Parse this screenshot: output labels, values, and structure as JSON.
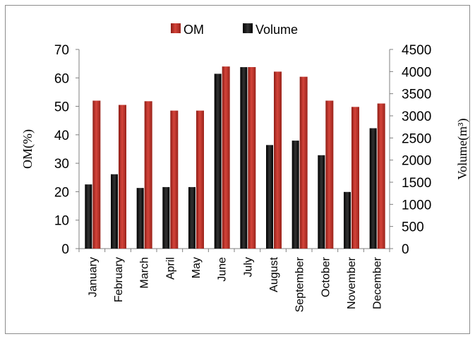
{
  "chart_data": {
    "type": "bar",
    "categories": [
      "January",
      "February",
      "March",
      "April",
      "May",
      "June",
      "July",
      "August",
      "September",
      "October",
      "November",
      "December"
    ],
    "series": [
      {
        "name": "OM",
        "axis": "left",
        "color": "#c0392b",
        "values": [
          52,
          50.5,
          51.8,
          48.5,
          48.5,
          64,
          63.8,
          62.2,
          60.4,
          52,
          49.8,
          51
        ]
      },
      {
        "name": "Volume",
        "axis": "right",
        "color": "#000000",
        "values": [
          1450,
          1680,
          1370,
          1390,
          1390,
          3950,
          4100,
          2340,
          2440,
          2110,
          1280,
          2720
        ]
      }
    ],
    "ylabel": "OM(%)",
    "y2label": "Volume(m³)",
    "ylim": [
      0,
      70
    ],
    "y2lim": [
      0,
      4500
    ],
    "yticks": [
      "0",
      "10",
      "20",
      "30",
      "40",
      "50",
      "60",
      "70"
    ],
    "y2ticks": [
      "0",
      "500",
      "1000",
      "1500",
      "2000",
      "2500",
      "3000",
      "3500",
      "4000",
      "4500"
    ],
    "grid": false,
    "legend_position": "top-center"
  }
}
